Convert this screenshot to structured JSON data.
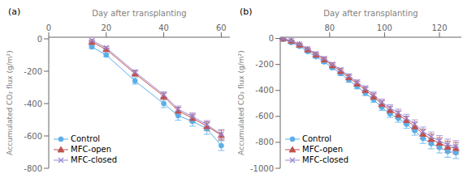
{
  "chart_data": [
    {
      "type": "line",
      "xlabel": "Day after transplanting",
      "ylabel": "Accumulated CO₂ flux (g/m²)",
      "annotations": [
        "(a)"
      ],
      "xlim": [
        0,
        63
      ],
      "ylim": [
        -800,
        10
      ],
      "xticks": [
        0,
        20,
        40,
        60
      ],
      "yticks": [
        0,
        -200,
        -400,
        -600,
        -800
      ],
      "grid": false,
      "legend": "lower left",
      "x": [
        15,
        20,
        30,
        40,
        45,
        50,
        55,
        60
      ],
      "series": [
        {
          "name": "Control",
          "color": "#5baee8",
          "marker": "circle",
          "values": [
            -50,
            -100,
            -260,
            -400,
            -475,
            -510,
            -555,
            -660
          ],
          "yerr": [
            8,
            10,
            20,
            25,
            28,
            30,
            35,
            30
          ]
        },
        {
          "name": "MFC-open",
          "color": "#c0504d",
          "marker": "triangle",
          "values": [
            -20,
            -65,
            -215,
            -355,
            -445,
            -490,
            -540,
            -595
          ],
          "yerr": [
            5,
            8,
            15,
            20,
            22,
            25,
            28,
            30
          ]
        },
        {
          "name": "MFC-closed",
          "color": "#9b86d0",
          "marker": "x",
          "values": [
            -10,
            -55,
            -205,
            -345,
            -435,
            -480,
            -530,
            -590
          ],
          "yerr": [
            4,
            7,
            12,
            18,
            20,
            22,
            25,
            28
          ]
        }
      ]
    },
    {
      "type": "line",
      "xlabel": "Day after transplanting",
      "ylabel": "Accumulated CO₂ flux (g/m²)",
      "annotations": [
        "(b)"
      ],
      "xlim": [
        62,
        128
      ],
      "ylim": [
        -1000,
        10
      ],
      "xticks": [
        80,
        100,
        120
      ],
      "yticks": [
        0,
        -200,
        -400,
        -600,
        -800,
        -1000
      ],
      "grid": false,
      "legend": "lower left",
      "x": [
        63,
        66,
        69,
        72,
        75,
        78,
        81,
        84,
        87,
        90,
        93,
        96,
        99,
        102,
        105,
        108,
        111,
        114,
        117,
        120,
        123,
        126
      ],
      "series": [
        {
          "name": "Control",
          "color": "#5baee8",
          "marker": "circle",
          "values": [
            -5,
            -30,
            -60,
            -100,
            -140,
            -180,
            -225,
            -270,
            -320,
            -370,
            -420,
            -470,
            -530,
            -580,
            -615,
            -660,
            -710,
            -770,
            -810,
            -840,
            -870,
            -880
          ],
          "yerr": [
            3,
            5,
            7,
            8,
            10,
            12,
            13,
            15,
            17,
            18,
            20,
            22,
            25,
            28,
            30,
            32,
            35,
            38,
            40,
            42,
            45,
            45
          ]
        },
        {
          "name": "MFC-open",
          "color": "#c0504d",
          "marker": "triangle",
          "values": [
            -2,
            -20,
            -48,
            -85,
            -125,
            -163,
            -208,
            -252,
            -300,
            -348,
            -398,
            -448,
            -505,
            -552,
            -588,
            -630,
            -678,
            -735,
            -775,
            -805,
            -835,
            -845
          ],
          "yerr": [
            2,
            4,
            6,
            7,
            9,
            11,
            12,
            14,
            16,
            17,
            19,
            21,
            24,
            27,
            29,
            31,
            34,
            37,
            39,
            41,
            44,
            44
          ]
        },
        {
          "name": "MFC-closed",
          "color": "#9b86d0",
          "marker": "x",
          "values": [
            -1,
            -15,
            -42,
            -78,
            -116,
            -153,
            -197,
            -240,
            -288,
            -335,
            -383,
            -432,
            -490,
            -536,
            -572,
            -614,
            -660,
            -718,
            -758,
            -788,
            -818,
            -830
          ],
          "yerr": [
            2,
            3,
            5,
            6,
            8,
            10,
            11,
            13,
            15,
            16,
            18,
            20,
            23,
            26,
            28,
            30,
            33,
            36,
            38,
            40,
            43,
            43
          ]
        }
      ]
    }
  ]
}
